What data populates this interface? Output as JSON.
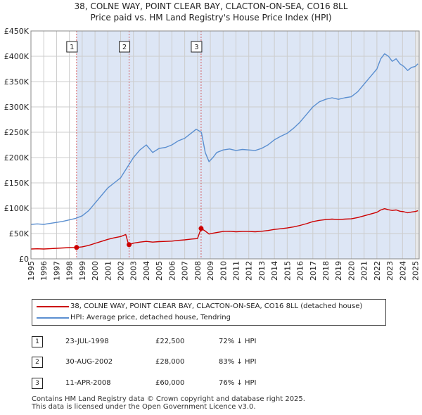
{
  "title_line1": "38, COLNE WAY, POINT CLEAR BAY, CLACTON-ON-SEA, CO16 8LL",
  "title_line2": "Price paid vs. HM Land Registry's House Price Index (HPI)",
  "legend": {
    "property_label": "38, COLNE WAY, POINT CLEAR BAY, CLACTON-ON-SEA, CO16 8LL (detached house)",
    "hpi_label": "HPI: Average price, detached house, Tendring"
  },
  "sales": [
    {
      "num": "1",
      "date": "23-JUL-1998",
      "price": "£22,500",
      "hpi": "72% ↓ HPI"
    },
    {
      "num": "2",
      "date": "30-AUG-2002",
      "price": "£28,000",
      "hpi": "83% ↓ HPI"
    },
    {
      "num": "3",
      "date": "11-APR-2008",
      "price": "£60,000",
      "hpi": "76% ↓ HPI"
    }
  ],
  "footer_line1": "Contains HM Land Registry data © Crown copyright and database right 2025.",
  "footer_line2": "This data is licensed under the Open Government Licence v3.0.",
  "colors": {
    "property": "#cc0000",
    "hpi": "#5b8fd0",
    "shade": "#dde6f5",
    "grid": "#cccccc"
  },
  "chart_data": {
    "type": "line",
    "title": "Price paid vs. HM Land Registry's House Price Index (HPI)",
    "xlim": [
      1995.0,
      2025.3
    ],
    "ylim": [
      0,
      450000
    ],
    "y_ticks": [
      0,
      50000,
      100000,
      150000,
      200000,
      250000,
      300000,
      350000,
      400000,
      450000
    ],
    "y_tick_labels": [
      "£0",
      "£50K",
      "£100K",
      "£150K",
      "£200K",
      "£250K",
      "£300K",
      "£350K",
      "£400K",
      "£450K"
    ],
    "x_ticks": [
      1995,
      1996,
      1997,
      1998,
      1999,
      2000,
      2001,
      2002,
      2003,
      2004,
      2005,
      2006,
      2007,
      2008,
      2009,
      2010,
      2011,
      2012,
      2013,
      2014,
      2015,
      2016,
      2017,
      2018,
      2019,
      2020,
      2021,
      2022,
      2023,
      2024,
      2025
    ],
    "x_tick_labels": [
      "1995",
      "1996",
      "1997",
      "1998",
      "1999",
      "2000",
      "2001",
      "2002",
      "2003",
      "2004",
      "2005",
      "2006",
      "2007",
      "2008",
      "2009",
      "2010",
      "2011",
      "2012",
      "2013",
      "2014",
      "2015",
      "2016",
      "2017",
      "2018",
      "2019",
      "2020",
      "2021",
      "2022",
      "2023",
      "2024",
      "2025"
    ],
    "sale_points": [
      {
        "label": "1",
        "x": 1998.56,
        "y": 22500
      },
      {
        "label": "2",
        "x": 2002.66,
        "y": 28000
      },
      {
        "label": "3",
        "x": 2008.28,
        "y": 60000
      }
    ],
    "series": [
      {
        "name": "HPI: Average price, detached house, Tendring",
        "x": [
          1995.0,
          1995.5,
          1996.0,
          1996.5,
          1997.0,
          1997.5,
          1998.0,
          1998.5,
          1999.0,
          1999.5,
          2000.0,
          2000.5,
          2001.0,
          2001.5,
          2002.0,
          2002.5,
          2003.0,
          2003.5,
          2004.0,
          2004.5,
          2005.0,
          2005.5,
          2006.0,
          2006.5,
          2007.0,
          2007.5,
          2007.9,
          2008.3,
          2008.6,
          2008.9,
          2009.2,
          2009.5,
          2010.0,
          2010.5,
          2011.0,
          2011.5,
          2012.0,
          2012.5,
          2013.0,
          2013.5,
          2014.0,
          2014.5,
          2015.0,
          2015.5,
          2016.0,
          2016.5,
          2017.0,
          2017.5,
          2018.0,
          2018.5,
          2019.0,
          2019.5,
          2020.0,
          2020.5,
          2021.0,
          2021.5,
          2022.0,
          2022.3,
          2022.6,
          2022.9,
          2023.2,
          2023.5,
          2023.8,
          2024.1,
          2024.4,
          2024.7,
          2025.0,
          2025.2
        ],
        "y": [
          68000,
          69000,
          68000,
          70000,
          72000,
          74000,
          77000,
          80000,
          85000,
          95000,
          110000,
          125000,
          140000,
          150000,
          160000,
          180000,
          200000,
          215000,
          225000,
          210000,
          218000,
          220000,
          225000,
          233000,
          238000,
          248000,
          256000,
          250000,
          210000,
          192000,
          200000,
          210000,
          215000,
          217000,
          214000,
          216000,
          215000,
          214000,
          218000,
          225000,
          235000,
          242000,
          248000,
          258000,
          270000,
          285000,
          300000,
          310000,
          315000,
          318000,
          315000,
          318000,
          320000,
          330000,
          345000,
          360000,
          375000,
          395000,
          405000,
          400000,
          390000,
          395000,
          385000,
          380000,
          372000,
          378000,
          380000,
          385000
        ]
      },
      {
        "name": "38, COLNE WAY, POINT CLEAR BAY, CLACTON-ON-SEA, CO16 8LL (detached house)",
        "x": [
          1995.0,
          1995.5,
          1996.0,
          1996.5,
          1997.0,
          1997.5,
          1998.0,
          1998.56,
          1999.0,
          1999.5,
          2000.0,
          2000.5,
          2001.0,
          2001.5,
          2002.0,
          2002.4,
          2002.6,
          2002.66,
          2003.0,
          2003.5,
          2004.0,
          2004.5,
          2005.0,
          2005.5,
          2006.0,
          2006.5,
          2007.0,
          2007.5,
          2008.0,
          2008.28,
          2008.6,
          2008.9,
          2009.2,
          2009.5,
          2010.0,
          2010.5,
          2011.0,
          2011.5,
          2012.0,
          2012.5,
          2013.0,
          2013.5,
          2014.0,
          2014.5,
          2015.0,
          2015.5,
          2016.0,
          2016.5,
          2017.0,
          2017.5,
          2018.0,
          2018.5,
          2019.0,
          2019.5,
          2020.0,
          2020.5,
          2021.0,
          2021.5,
          2022.0,
          2022.3,
          2022.6,
          2022.9,
          2023.2,
          2023.5,
          2023.8,
          2024.1,
          2024.4,
          2024.7,
          2025.0,
          2025.2
        ],
        "y": [
          19500,
          19800,
          19500,
          20000,
          20800,
          21500,
          22200,
          22500,
          23800,
          26500,
          30500,
          34500,
          38500,
          41500,
          44000,
          48000,
          30000,
          28000,
          31000,
          33000,
          34500,
          33000,
          34000,
          34500,
          35000,
          36500,
          37500,
          39000,
          40000,
          60000,
          55000,
          49000,
          50500,
          52000,
          54000,
          54500,
          53500,
          54000,
          54000,
          53500,
          54500,
          56000,
          58000,
          59500,
          61000,
          63000,
          66000,
          69500,
          73500,
          76000,
          77500,
          78500,
          77500,
          78500,
          79000,
          81500,
          85000,
          88500,
          92000,
          96500,
          99000,
          97000,
          95500,
          96500,
          94000,
          93000,
          91000,
          92500,
          93500,
          95000
        ]
      }
    ]
  }
}
